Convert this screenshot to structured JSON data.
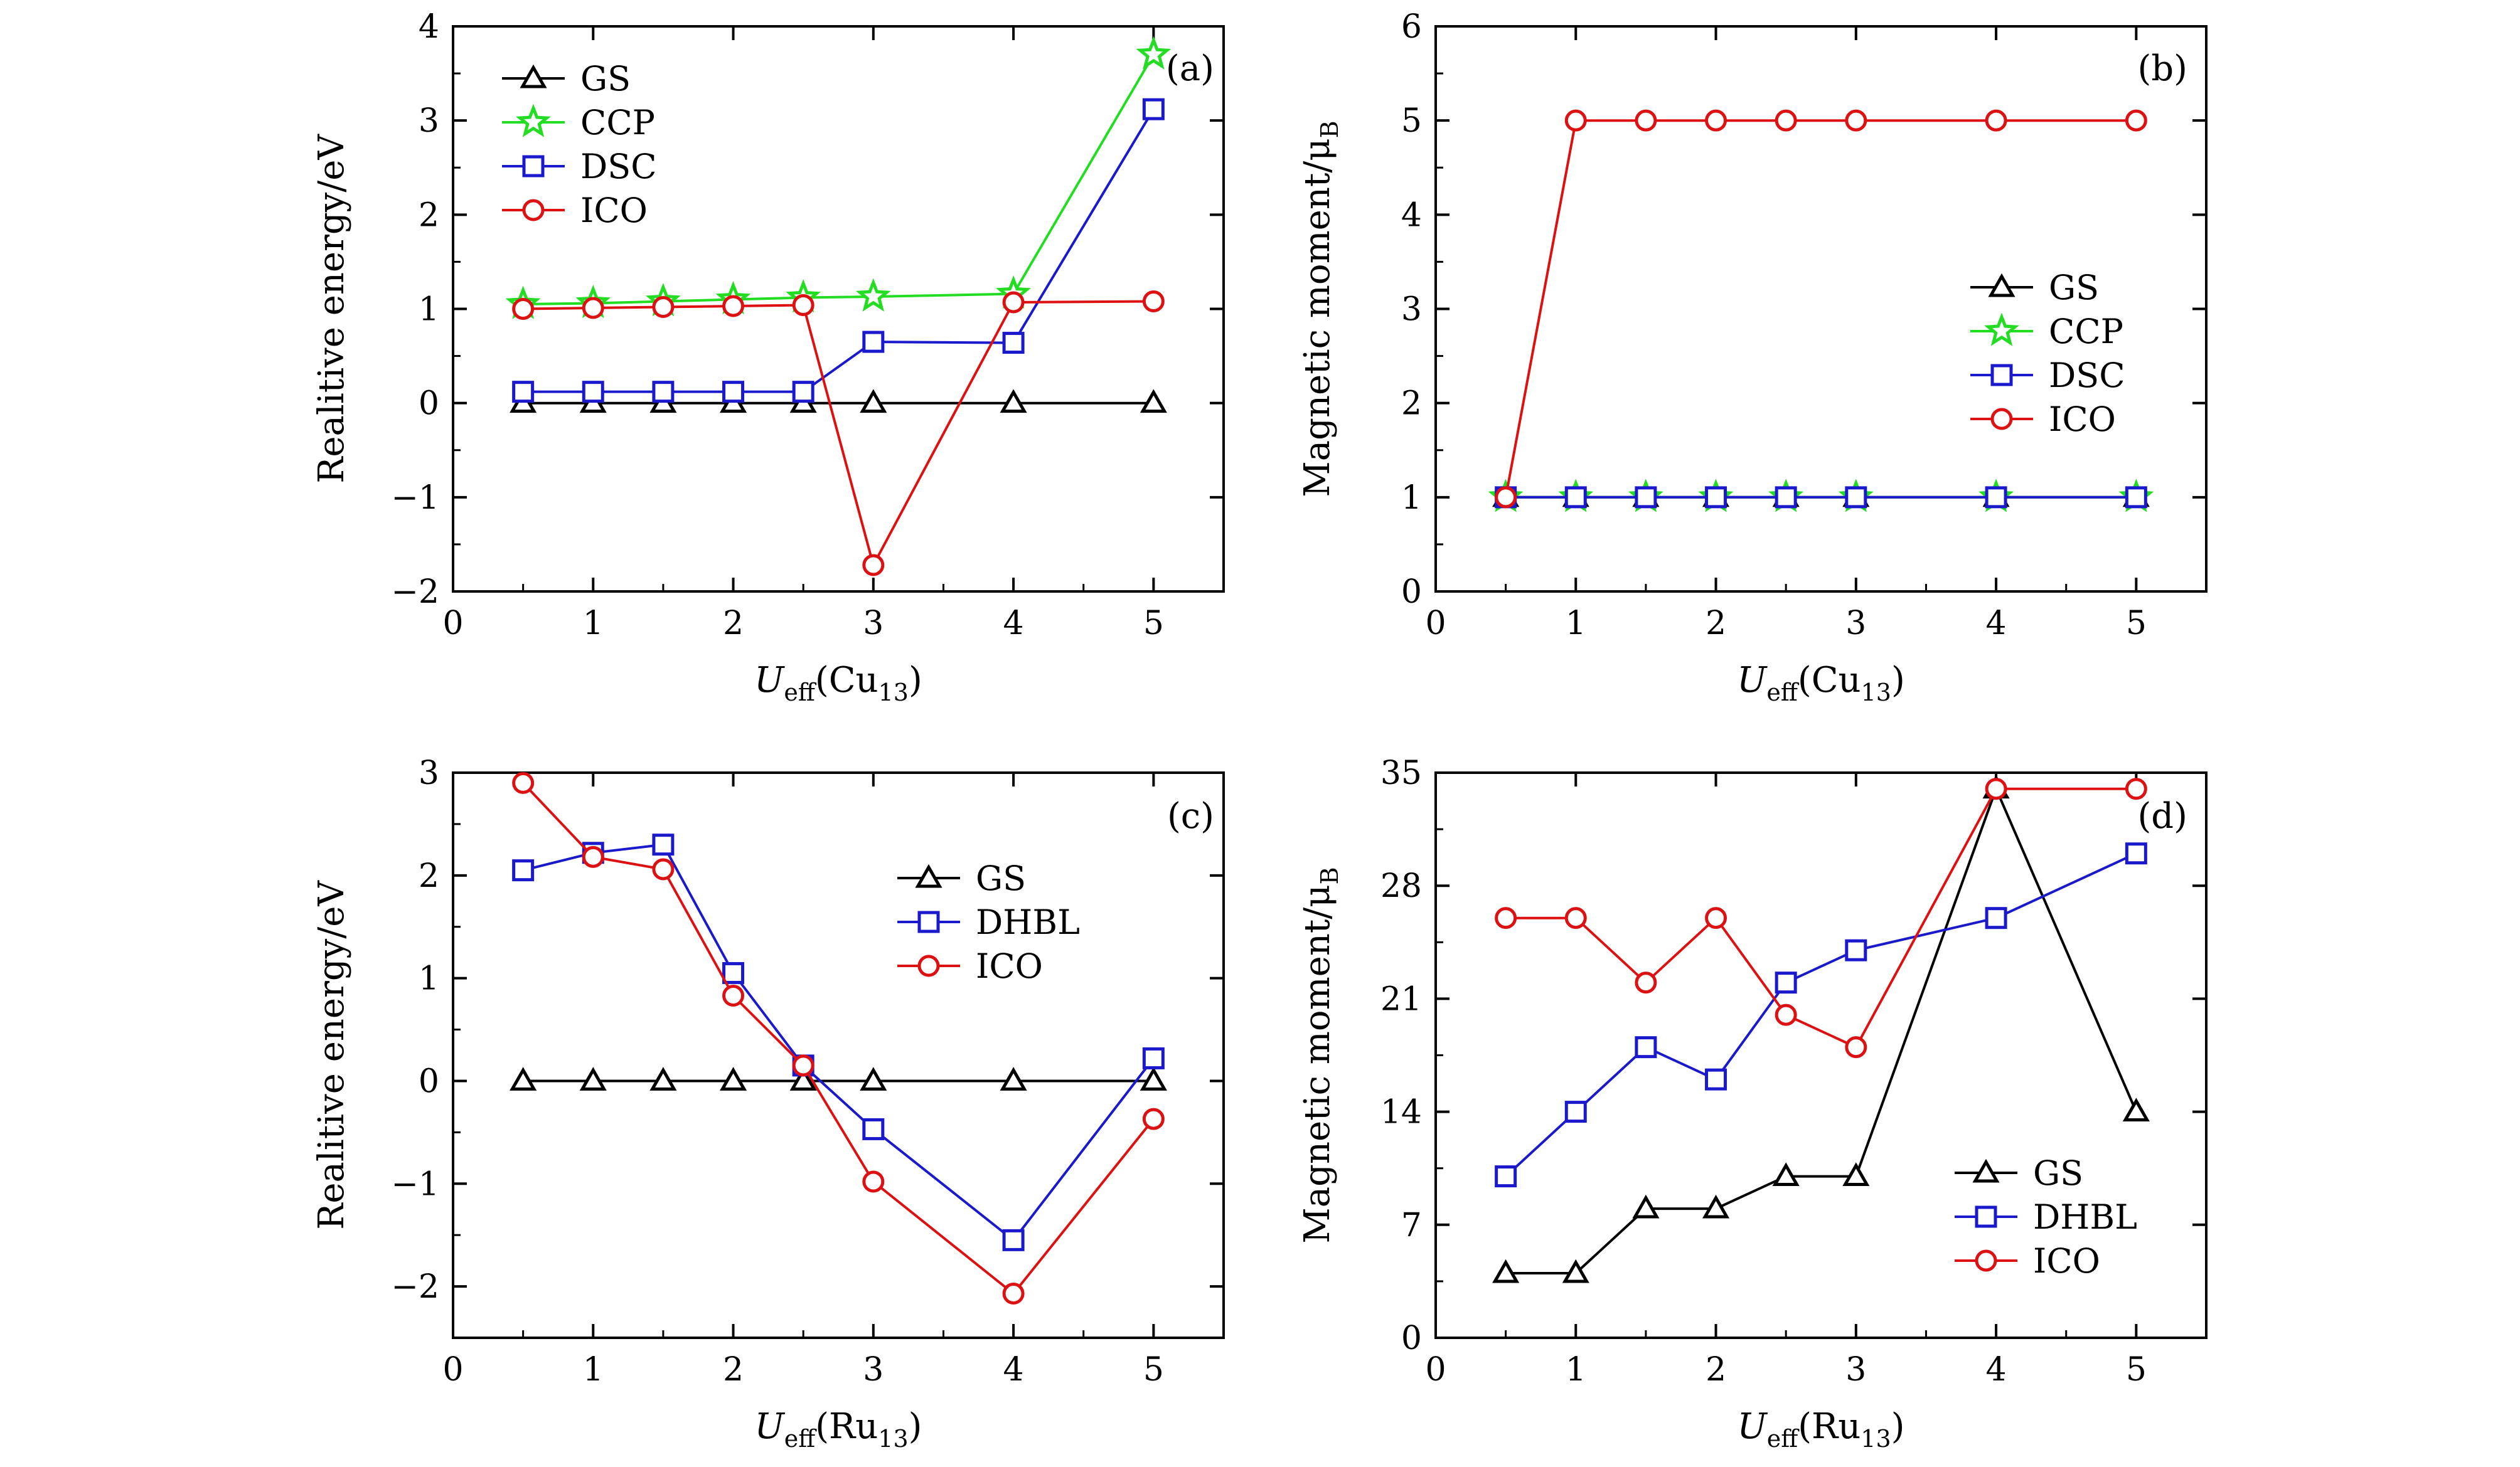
{
  "chart_data": [
    {
      "type": "line",
      "panel_label": "(a)",
      "xlabel": {
        "main": "U",
        "sub": "eff",
        "paren": "(Cu",
        "sub2": "13",
        "close": ")"
      },
      "ylabel": {
        "main": "Realitive energy/eV",
        "sub": ""
      },
      "xlim": [
        0,
        5.5
      ],
      "ylim": [
        -2,
        4
      ],
      "xticks": [
        0,
        1,
        2,
        3,
        4,
        5
      ],
      "yticks": [
        -2,
        -1,
        0,
        1,
        2,
        3,
        4
      ],
      "ytick_labels": [
        "−2",
        "−1",
        "0",
        "1",
        "2",
        "3",
        "4"
      ],
      "legend_position": "top-left",
      "series": [
        {
          "name": "GS",
          "color": "#000000",
          "marker": "triangle",
          "x": [
            0.5,
            1,
            1.5,
            2,
            2.5,
            3,
            4,
            5
          ],
          "y": [
            0,
            0,
            0,
            0,
            0,
            0,
            0,
            0
          ]
        },
        {
          "name": "CCP",
          "color": "#22dd22",
          "marker": "star",
          "x": [
            0.5,
            1,
            1.5,
            2,
            2.5,
            3,
            4,
            5
          ],
          "y": [
            1.05,
            1.06,
            1.08,
            1.1,
            1.12,
            1.13,
            1.16,
            3.7
          ]
        },
        {
          "name": "DSC",
          "color": "#1a1acc",
          "marker": "square",
          "x": [
            0.5,
            1,
            1.5,
            2,
            2.5,
            3,
            4,
            5
          ],
          "y": [
            0.12,
            0.12,
            0.12,
            0.12,
            0.12,
            0.65,
            0.64,
            3.12
          ]
        },
        {
          "name": "ICO",
          "color": "#dd1111",
          "marker": "circle",
          "x": [
            0.5,
            1,
            1.5,
            2,
            2.5,
            3,
            4,
            5
          ],
          "y": [
            1.0,
            1.01,
            1.02,
            1.03,
            1.04,
            -1.72,
            1.07,
            1.08
          ]
        }
      ]
    },
    {
      "type": "line",
      "panel_label": "(b)",
      "xlabel": {
        "main": "U",
        "sub": "eff",
        "paren": "(Cu",
        "sub2": "13",
        "close": ")"
      },
      "ylabel": {
        "main": "Magnetic moment/μ",
        "sub": "B"
      },
      "xlim": [
        0,
        5.5
      ],
      "ylim": [
        0,
        6
      ],
      "xticks": [
        0,
        1,
        2,
        3,
        4,
        5
      ],
      "yticks": [
        0,
        1,
        2,
        3,
        4,
        5,
        6
      ],
      "ytick_labels": [
        "0",
        "1",
        "2",
        "3",
        "4",
        "5",
        "6"
      ],
      "legend_position": "right",
      "series": [
        {
          "name": "GS",
          "color": "#000000",
          "marker": "triangle",
          "x": [
            0.5,
            1,
            1.5,
            2,
            2.5,
            3,
            4,
            5
          ],
          "y": [
            1,
            1,
            1,
            1,
            1,
            1,
            1,
            1
          ]
        },
        {
          "name": "CCP",
          "color": "#22dd22",
          "marker": "star",
          "x": [
            0.5,
            1,
            1.5,
            2,
            2.5,
            3,
            4,
            5
          ],
          "y": [
            1,
            1,
            1,
            1,
            1,
            1,
            1,
            1
          ]
        },
        {
          "name": "DSC",
          "color": "#1a1acc",
          "marker": "square",
          "x": [
            0.5,
            1,
            1.5,
            2,
            2.5,
            3,
            4,
            5
          ],
          "y": [
            1,
            1,
            1,
            1,
            1,
            1,
            1,
            1
          ]
        },
        {
          "name": "ICO",
          "color": "#dd1111",
          "marker": "circle",
          "x": [
            0.5,
            1,
            1.5,
            2,
            2.5,
            3,
            4,
            5
          ],
          "y": [
            1,
            5,
            5,
            5,
            5,
            5,
            5,
            5
          ]
        }
      ]
    },
    {
      "type": "line",
      "panel_label": "(c)",
      "xlabel": {
        "main": "U",
        "sub": "eff",
        "paren": "(Ru",
        "sub2": "13",
        "close": ")"
      },
      "ylabel": {
        "main": "Realitive energy/eV",
        "sub": ""
      },
      "xlim": [
        0,
        5.5
      ],
      "ylim": [
        -2.5,
        3
      ],
      "xticks": [
        0,
        1,
        2,
        3,
        4,
        5
      ],
      "yticks": [
        -2,
        -1,
        0,
        1,
        2,
        3
      ],
      "ytick_labels": [
        "−2",
        "−1",
        "0",
        "1",
        "2",
        "3"
      ],
      "legend_position": "top-right",
      "series": [
        {
          "name": "GS",
          "color": "#000000",
          "marker": "triangle",
          "x": [
            0.5,
            1,
            1.5,
            2,
            2.5,
            3,
            4,
            5
          ],
          "y": [
            0,
            0,
            0,
            0,
            0,
            0,
            0,
            0
          ]
        },
        {
          "name": "DHBL",
          "color": "#1a1acc",
          "marker": "square",
          "x": [
            0.5,
            1,
            1.5,
            2,
            2.5,
            3,
            4,
            5
          ],
          "y": [
            2.05,
            2.22,
            2.3,
            1.05,
            0.15,
            -0.47,
            -1.55,
            0.22
          ]
        },
        {
          "name": "ICO",
          "color": "#dd1111",
          "marker": "circle",
          "x": [
            0.5,
            1,
            1.5,
            2,
            2.5,
            3,
            4,
            5
          ],
          "y": [
            2.9,
            2.18,
            2.06,
            0.83,
            0.15,
            -0.98,
            -2.07,
            -0.37
          ]
        }
      ]
    },
    {
      "type": "line",
      "panel_label": "(d)",
      "xlabel": {
        "main": "U",
        "sub": "eff",
        "paren": "(Ru",
        "sub2": "13",
        "close": ")"
      },
      "ylabel": {
        "main": "Magnetic moment/μ",
        "sub": "B"
      },
      "xlim": [
        0,
        5.5
      ],
      "ylim": [
        0,
        35
      ],
      "xticks": [
        0,
        1,
        2,
        3,
        4,
        5
      ],
      "yticks": [
        0,
        7,
        14,
        21,
        28,
        35
      ],
      "ytick_labels": [
        "0",
        "7",
        "14",
        "21",
        "28",
        "35"
      ],
      "legend_position": "bottom-right",
      "series": [
        {
          "name": "GS",
          "color": "#000000",
          "marker": "triangle",
          "x": [
            0.5,
            1,
            1.5,
            2,
            2.5,
            3,
            4,
            5
          ],
          "y": [
            4,
            4,
            8,
            8,
            10,
            10,
            34,
            14
          ]
        },
        {
          "name": "DHBL",
          "color": "#1a1acc",
          "marker": "square",
          "x": [
            0.5,
            1,
            1.5,
            2,
            2.5,
            3,
            4,
            5
          ],
          "y": [
            10,
            14,
            18,
            16,
            22,
            24,
            26,
            30
          ]
        },
        {
          "name": "ICO",
          "color": "#dd1111",
          "marker": "circle",
          "x": [
            0.5,
            1,
            1.5,
            2,
            2.5,
            3,
            4,
            5
          ],
          "y": [
            26,
            26,
            22,
            26,
            20,
            18,
            34,
            34
          ]
        }
      ]
    }
  ]
}
